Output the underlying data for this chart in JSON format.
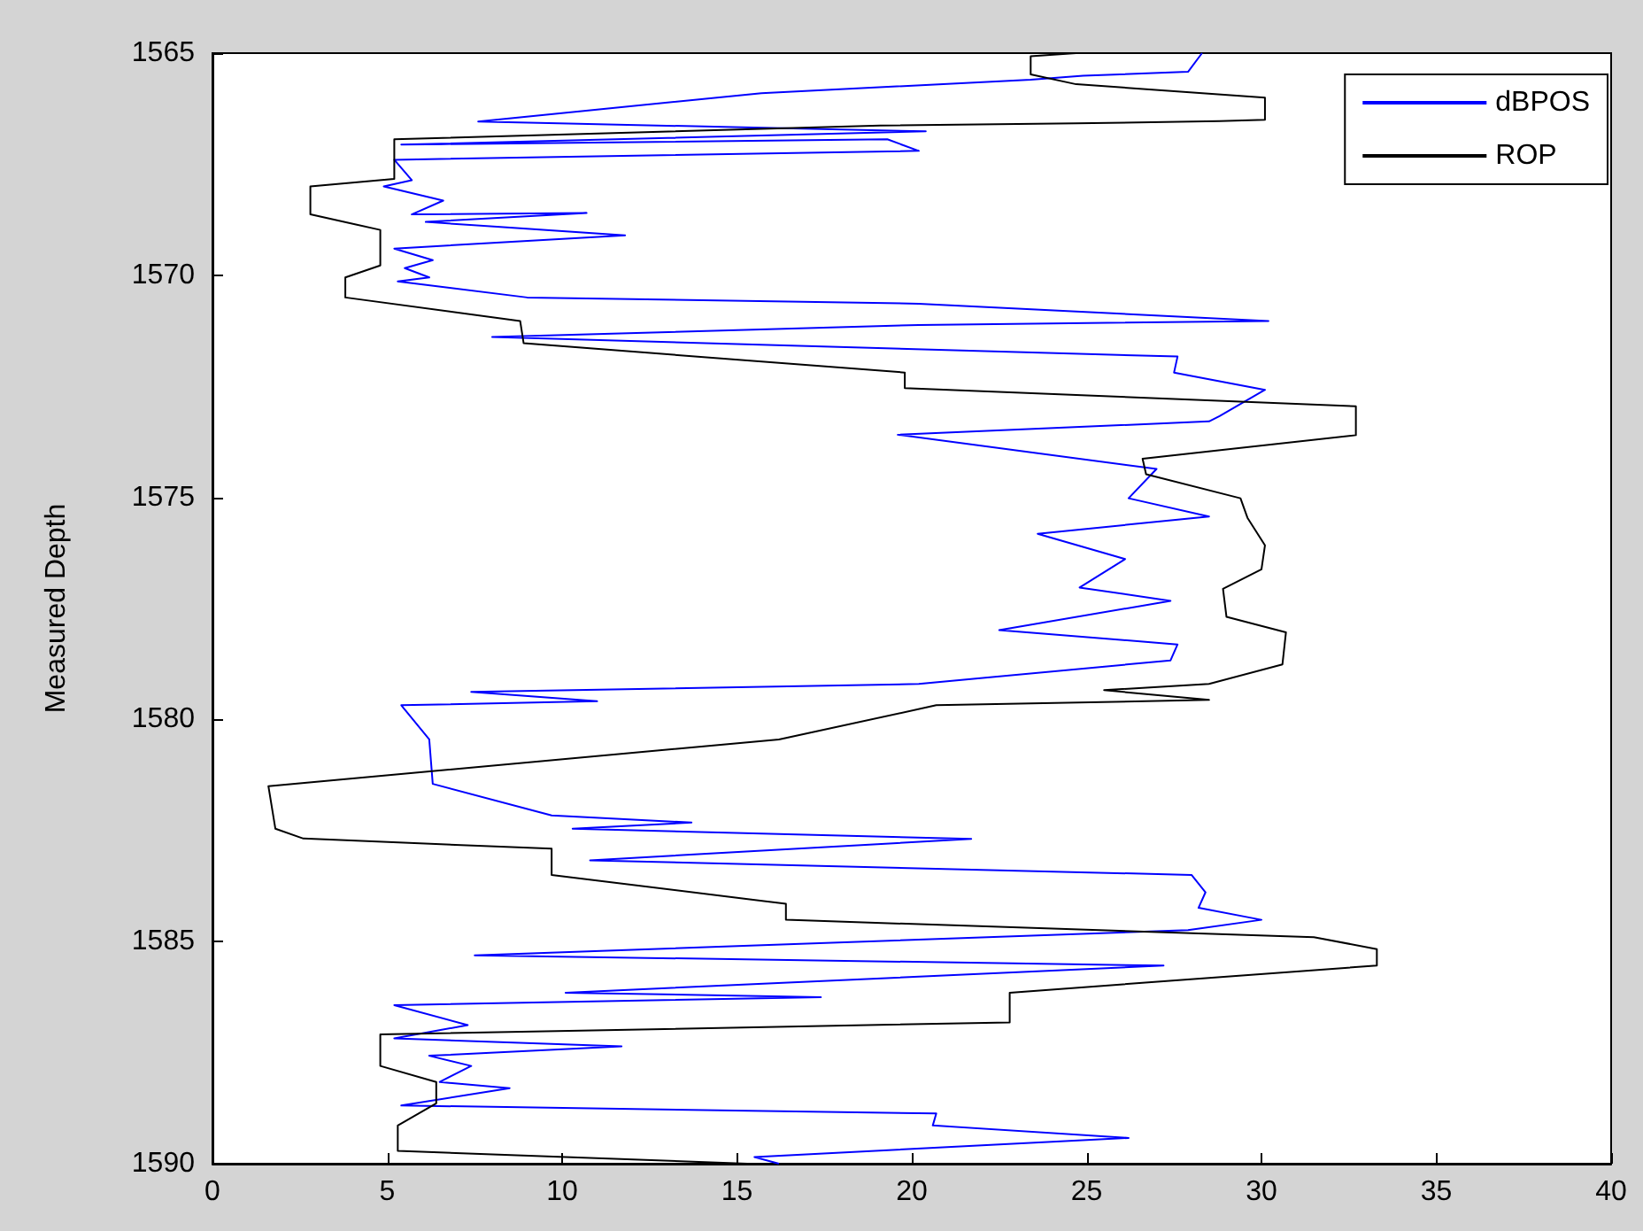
{
  "chart_data": {
    "type": "line",
    "ylabel": "Measured Depth",
    "xlim": [
      0,
      40
    ],
    "xticks": [
      0,
      5,
      10,
      15,
      20,
      25,
      30,
      35,
      40
    ],
    "ylim": [
      1590,
      1565
    ],
    "yticks": [
      1565,
      1570,
      1575,
      1580,
      1585,
      1590
    ],
    "legend": "top right",
    "grid": false,
    "marker": "none",
    "line_style": "solid",
    "series": [
      {
        "name": "dBPOS",
        "color": "#0000ff",
        "x": [
          28.3,
          27.9,
          24.9,
          23.4,
          15.7,
          7.6,
          9.9,
          20.4,
          5.4,
          19.3,
          20.2,
          5.2,
          5.7,
          4.9,
          6.6,
          5.7,
          10.7,
          6.1,
          11.8,
          5.2,
          6.3,
          5.5,
          6.2,
          5.3,
          9.0,
          20.2,
          30.2,
          20.2,
          8.0,
          27.6,
          27.5,
          30.1,
          28.8,
          28.5,
          19.6,
          27.0,
          26.2,
          28.5,
          23.6,
          26.1,
          24.8,
          27.4,
          22.5,
          27.6,
          27.4,
          20.2,
          7.4,
          11.0,
          5.4,
          6.2,
          6.3,
          9.7,
          13.7,
          10.3,
          21.7,
          10.8,
          28.0,
          28.4,
          28.2,
          30.0,
          27.9,
          7.5,
          27.2,
          10.1,
          17.4,
          5.2,
          7.3,
          5.2,
          11.7,
          6.2,
          7.4,
          6.5,
          8.5,
          5.4,
          20.7,
          20.6,
          26.2,
          15.5,
          16.2
        ],
        "values": [
          1565.0,
          1565.42,
          1565.51,
          1565.6,
          1565.9,
          1566.54,
          1566.58,
          1566.76,
          1567.06,
          1566.94,
          1567.2,
          1567.4,
          1567.86,
          1568.0,
          1568.32,
          1568.63,
          1568.6,
          1568.8,
          1569.1,
          1569.4,
          1569.66,
          1569.84,
          1570.05,
          1570.14,
          1570.5,
          1570.64,
          1571.03,
          1571.12,
          1571.39,
          1571.83,
          1572.19,
          1572.58,
          1573.17,
          1573.29,
          1573.59,
          1574.36,
          1575.02,
          1575.43,
          1575.82,
          1576.39,
          1577.03,
          1577.33,
          1577.99,
          1578.31,
          1578.67,
          1579.2,
          1579.38,
          1579.59,
          1579.68,
          1580.45,
          1581.45,
          1582.16,
          1582.32,
          1582.46,
          1582.69,
          1583.17,
          1583.5,
          1583.89,
          1584.24,
          1584.51,
          1584.74,
          1585.31,
          1585.54,
          1586.15,
          1586.25,
          1586.43,
          1586.88,
          1587.18,
          1587.36,
          1587.57,
          1587.8,
          1588.16,
          1588.3,
          1588.69,
          1588.87,
          1589.14,
          1589.42,
          1589.85,
          1590.0
        ]
      },
      {
        "name": "ROP",
        "color": "#000000",
        "x": [
          24.7,
          23.4,
          23.4,
          24.7,
          30.1,
          30.1,
          28.8,
          24.7,
          19.1,
          5.2,
          5.2,
          2.8,
          2.8,
          4.8,
          4.8,
          3.8,
          3.8,
          8.8,
          8.9,
          19.8,
          19.8,
          32.7,
          32.7,
          26.6,
          26.7,
          29.4,
          29.6,
          30.1,
          30.0,
          28.9,
          29.0,
          30.7,
          30.6,
          28.5,
          25.5,
          28.5,
          20.7,
          16.2,
          1.6,
          1.8,
          2.6,
          9.7,
          9.7,
          16.4,
          16.4,
          31.5,
          33.3,
          33.3,
          22.8,
          22.8,
          4.8,
          4.8,
          6.4,
          6.4,
          5.3,
          5.3,
          10.1,
          15.3
        ],
        "values": [
          1565.0,
          1565.07,
          1565.48,
          1565.7,
          1566.0,
          1566.5,
          1566.53,
          1566.58,
          1566.63,
          1566.94,
          1567.83,
          1568.0,
          1568.63,
          1568.98,
          1569.78,
          1570.05,
          1570.5,
          1571.03,
          1571.53,
          1572.19,
          1572.54,
          1572.95,
          1573.6,
          1574.13,
          1574.48,
          1575.02,
          1575.46,
          1576.08,
          1576.62,
          1577.06,
          1577.69,
          1578.04,
          1578.76,
          1579.2,
          1579.34,
          1579.56,
          1579.68,
          1580.45,
          1581.5,
          1582.46,
          1582.68,
          1582.91,
          1583.5,
          1584.15,
          1584.51,
          1584.9,
          1585.17,
          1585.54,
          1586.15,
          1586.82,
          1587.09,
          1587.8,
          1588.16,
          1588.64,
          1589.14,
          1589.71,
          1589.85,
          1590.0
        ]
      }
    ]
  }
}
